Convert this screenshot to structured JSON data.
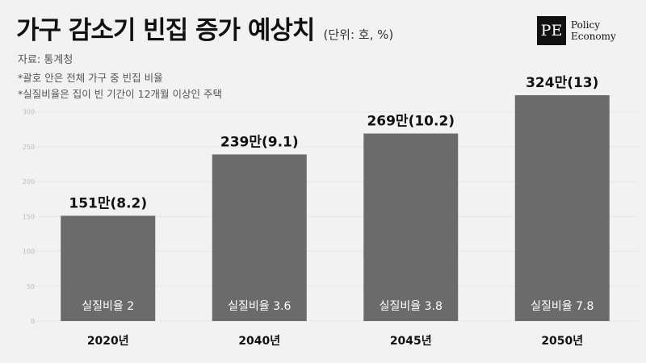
{
  "header": {
    "title": "가구 감소기 빈집 증가 예상치",
    "unit": "(단위: 호, %)",
    "source": "자료: 통계청",
    "notes": [
      "*괄호 안은 전체 가구 중 빈집 비율",
      "*실질비율은 집이 빈 기간이 12개월 이상인 주택"
    ]
  },
  "logo": {
    "mark": "PE",
    "line1": "Policy",
    "line2": "Economy"
  },
  "colors": {
    "bar": "#6b6b6b",
    "background": "#f2f2f2",
    "text": "#111111",
    "grid": "#e6e6e6"
  },
  "chart_data": {
    "type": "bar",
    "title": "가구 감소기 빈집 증가 예상치",
    "xlabel": "",
    "ylabel": "",
    "categories": [
      "2020년",
      "2040년",
      "2045년",
      "2050년"
    ],
    "values": [
      151,
      239,
      269,
      324
    ],
    "value_labels": [
      "151만(8.2)",
      "239만(9.1)",
      "269만(10.2)",
      "324만(13)"
    ],
    "inner_labels": [
      "실질비율 2",
      "실질비율 3.6",
      "실질비율 3.8",
      "실질비율 7.8"
    ],
    "ylim": [
      0,
      324
    ],
    "yticks": [
      0,
      50,
      100,
      150,
      200,
      250,
      300
    ],
    "grid": false,
    "legend": "none"
  }
}
